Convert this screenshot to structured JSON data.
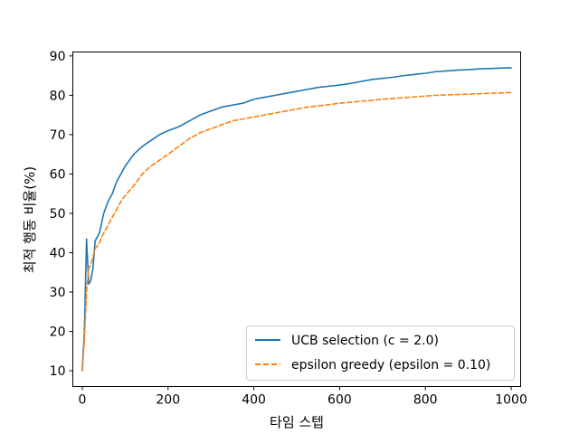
{
  "chart_data": {
    "type": "line",
    "title": "",
    "xlabel": "타임 스텝",
    "ylabel": "최적 행동 비율(%)",
    "xlim": [
      -22,
      1022
    ],
    "ylim": [
      6,
      91
    ],
    "x_ticks": [
      0,
      200,
      400,
      600,
      800,
      1000
    ],
    "y_ticks": [
      10,
      20,
      30,
      40,
      50,
      60,
      70,
      80,
      90
    ],
    "x_tick_labels": [
      "0",
      "200",
      "400",
      "600",
      "800",
      "1000"
    ],
    "y_tick_labels": [
      "10",
      "20",
      "30",
      "40",
      "50",
      "60",
      "70",
      "80",
      "90"
    ],
    "grid": false,
    "legend_position": "lower-right",
    "series": [
      {
        "name": "UCB selection (c = 2.0)",
        "color": "#1f77b4",
        "style": "solid",
        "points": [
          [
            0,
            10
          ],
          [
            5,
            20
          ],
          [
            10,
            43.5
          ],
          [
            15,
            32
          ],
          [
            20,
            33
          ],
          [
            25,
            36
          ],
          [
            30,
            43
          ],
          [
            40,
            45
          ],
          [
            50,
            50
          ],
          [
            60,
            53
          ],
          [
            70,
            55
          ],
          [
            80,
            58
          ],
          [
            90,
            60
          ],
          [
            100,
            62
          ],
          [
            120,
            65
          ],
          [
            140,
            67
          ],
          [
            160,
            68.5
          ],
          [
            180,
            70
          ],
          [
            200,
            71
          ],
          [
            225,
            72
          ],
          [
            250,
            73.5
          ],
          [
            275,
            75
          ],
          [
            300,
            76
          ],
          [
            325,
            77
          ],
          [
            350,
            77.5
          ],
          [
            375,
            78
          ],
          [
            400,
            79
          ],
          [
            425,
            79.5
          ],
          [
            450,
            80
          ],
          [
            475,
            80.5
          ],
          [
            500,
            81
          ],
          [
            525,
            81.5
          ],
          [
            550,
            82
          ],
          [
            575,
            82.3
          ],
          [
            600,
            82.6
          ],
          [
            625,
            83
          ],
          [
            650,
            83.5
          ],
          [
            675,
            84
          ],
          [
            700,
            84.3
          ],
          [
            725,
            84.6
          ],
          [
            750,
            85
          ],
          [
            775,
            85.3
          ],
          [
            800,
            85.6
          ],
          [
            825,
            86
          ],
          [
            850,
            86.2
          ],
          [
            875,
            86.4
          ],
          [
            900,
            86.5
          ],
          [
            925,
            86.7
          ],
          [
            950,
            86.8
          ],
          [
            975,
            86.9
          ],
          [
            1000,
            87
          ]
        ]
      },
      {
        "name": "epsilon greedy (epsilon = 0.10)",
        "color": "#ff7f0e",
        "style": "dashed",
        "points": [
          [
            0,
            10
          ],
          [
            5,
            18
          ],
          [
            10,
            30
          ],
          [
            15,
            36
          ],
          [
            20,
            37
          ],
          [
            25,
            39
          ],
          [
            30,
            41
          ],
          [
            40,
            42.5
          ],
          [
            50,
            45
          ],
          [
            60,
            47
          ],
          [
            70,
            49
          ],
          [
            80,
            51
          ],
          [
            90,
            53
          ],
          [
            100,
            54.5
          ],
          [
            120,
            57
          ],
          [
            140,
            60
          ],
          [
            160,
            62
          ],
          [
            180,
            63.5
          ],
          [
            200,
            65
          ],
          [
            225,
            67
          ],
          [
            250,
            69
          ],
          [
            275,
            70.5
          ],
          [
            300,
            71.5
          ],
          [
            325,
            72.5
          ],
          [
            350,
            73.5
          ],
          [
            375,
            74
          ],
          [
            400,
            74.5
          ],
          [
            425,
            75
          ],
          [
            450,
            75.5
          ],
          [
            475,
            76
          ],
          [
            500,
            76.5
          ],
          [
            525,
            77
          ],
          [
            550,
            77.3
          ],
          [
            575,
            77.6
          ],
          [
            600,
            78
          ],
          [
            625,
            78.2
          ],
          [
            650,
            78.5
          ],
          [
            675,
            78.7
          ],
          [
            700,
            79
          ],
          [
            725,
            79.2
          ],
          [
            750,
            79.4
          ],
          [
            775,
            79.6
          ],
          [
            800,
            79.8
          ],
          [
            825,
            80
          ],
          [
            850,
            80.1
          ],
          [
            875,
            80.2
          ],
          [
            900,
            80.3
          ],
          [
            925,
            80.4
          ],
          [
            950,
            80.5
          ],
          [
            975,
            80.6
          ],
          [
            1000,
            80.7
          ]
        ]
      }
    ]
  }
}
